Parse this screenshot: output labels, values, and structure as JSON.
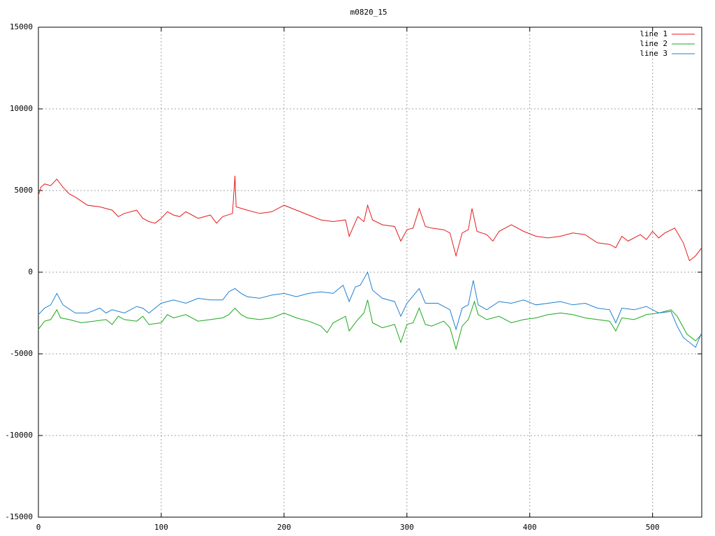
{
  "chart_data": {
    "type": "line",
    "title": "m0820_15",
    "xlim": [
      0,
      540
    ],
    "xticks": [
      0,
      100,
      200,
      300,
      400,
      500
    ],
    "ylim": [
      -15000,
      15000
    ],
    "yticks": [
      -15000,
      -10000,
      -5000,
      0,
      5000,
      10000,
      15000
    ],
    "grid": true,
    "legend": "top-right",
    "series": [
      {
        "name": "line 1",
        "color": "#e41a1c",
        "x": [
          0,
          2,
          5,
          10,
          15,
          20,
          25,
          30,
          40,
          50,
          60,
          65,
          70,
          80,
          85,
          90,
          95,
          100,
          105,
          110,
          115,
          120,
          130,
          140,
          145,
          150,
          158,
          160,
          161,
          170,
          180,
          190,
          200,
          210,
          220,
          230,
          240,
          250,
          253,
          260,
          265,
          268,
          272,
          280,
          290,
          295,
          300,
          305,
          310,
          315,
          320,
          330,
          335,
          340,
          345,
          350,
          353,
          357,
          365,
          370,
          375,
          385,
          395,
          405,
          415,
          425,
          435,
          445,
          455,
          465,
          470,
          475,
          480,
          490,
          495,
          500,
          505,
          510,
          518,
          525,
          530,
          535,
          540
        ],
        "values": [
          4700,
          5200,
          5400,
          5300,
          5700,
          5200,
          4800,
          4600,
          4100,
          4000,
          3800,
          3400,
          3600,
          3800,
          3300,
          3100,
          3000,
          3300,
          3700,
          3500,
          3400,
          3700,
          3300,
          3500,
          3000,
          3400,
          3600,
          5900,
          4000,
          3800,
          3600,
          3700,
          4100,
          3800,
          3500,
          3200,
          3100,
          3200,
          2200,
          3400,
          3100,
          4100,
          3200,
          2900,
          2800,
          1900,
          2600,
          2700,
          3900,
          2800,
          2700,
          2600,
          2400,
          1000,
          2400,
          2600,
          3900,
          2500,
          2300,
          1900,
          2500,
          2900,
          2500,
          2200,
          2100,
          2200,
          2400,
          2300,
          1800,
          1700,
          1500,
          2200,
          1900,
          2300,
          2000,
          2500,
          2100,
          2400,
          2700,
          1800,
          700,
          1000,
          1500
        ]
      },
      {
        "name": "line 2",
        "color": "#1ca81c",
        "x": [
          0,
          2,
          5,
          10,
          15,
          18,
          25,
          35,
          45,
          55,
          60,
          65,
          70,
          80,
          85,
          90,
          100,
          105,
          110,
          120,
          130,
          140,
          150,
          155,
          160,
          165,
          170,
          180,
          190,
          200,
          210,
          220,
          230,
          235,
          240,
          250,
          253,
          260,
          265,
          268,
          272,
          280,
          290,
          295,
          300,
          305,
          310,
          315,
          320,
          330,
          335,
          340,
          345,
          350,
          355,
          358,
          365,
          375,
          385,
          395,
          405,
          415,
          425,
          435,
          445,
          455,
          465,
          470,
          475,
          485,
          495,
          505,
          515,
          520,
          528,
          535,
          540
        ],
        "values": [
          -3500,
          -3300,
          -3000,
          -2900,
          -2300,
          -2800,
          -2900,
          -3100,
          -3000,
          -2900,
          -3200,
          -2700,
          -2900,
          -3000,
          -2700,
          -3200,
          -3100,
          -2600,
          -2800,
          -2600,
          -3000,
          -2900,
          -2800,
          -2600,
          -2200,
          -2600,
          -2800,
          -2900,
          -2800,
          -2500,
          -2800,
          -3000,
          -3300,
          -3700,
          -3100,
          -2700,
          -3600,
          -2900,
          -2500,
          -1700,
          -3100,
          -3400,
          -3200,
          -4300,
          -3200,
          -3100,
          -2200,
          -3200,
          -3300,
          -3000,
          -3400,
          -4700,
          -3300,
          -2900,
          -1800,
          -2600,
          -2900,
          -2700,
          -3100,
          -2900,
          -2800,
          -2600,
          -2500,
          -2600,
          -2800,
          -2900,
          -3000,
          -3600,
          -2800,
          -2900,
          -2600,
          -2500,
          -2300,
          -2700,
          -3800,
          -4200,
          -3800
        ]
      },
      {
        "name": "line 3",
        "color": "#1f7fd0",
        "x": [
          0,
          5,
          10,
          15,
          20,
          30,
          40,
          50,
          55,
          60,
          70,
          80,
          85,
          90,
          100,
          110,
          120,
          130,
          140,
          150,
          155,
          160,
          165,
          170,
          180,
          190,
          200,
          210,
          220,
          230,
          240,
          248,
          253,
          258,
          262,
          268,
          272,
          280,
          290,
          295,
          300,
          310,
          315,
          325,
          335,
          340,
          345,
          350,
          354,
          358,
          365,
          375,
          385,
          395,
          405,
          415,
          425,
          435,
          445,
          455,
          465,
          470,
          475,
          485,
          495,
          505,
          515,
          520,
          525,
          535,
          540
        ],
        "values": [
          -2600,
          -2200,
          -2000,
          -1300,
          -2000,
          -2500,
          -2500,
          -2200,
          -2500,
          -2300,
          -2500,
          -2100,
          -2200,
          -2500,
          -1900,
          -1700,
          -1900,
          -1600,
          -1700,
          -1700,
          -1200,
          -1000,
          -1300,
          -1500,
          -1600,
          -1400,
          -1300,
          -1500,
          -1300,
          -1200,
          -1300,
          -800,
          -1800,
          -900,
          -800,
          0,
          -1100,
          -1600,
          -1800,
          -2700,
          -1900,
          -1000,
          -1900,
          -1900,
          -2300,
          -3500,
          -2200,
          -2000,
          -500,
          -2000,
          -2300,
          -1800,
          -1900,
          -1700,
          -2000,
          -1900,
          -1800,
          -2000,
          -1900,
          -2200,
          -2300,
          -3100,
          -2200,
          -2300,
          -2100,
          -2500,
          -2400,
          -3300,
          -4000,
          -4600,
          -3700
        ]
      }
    ]
  }
}
